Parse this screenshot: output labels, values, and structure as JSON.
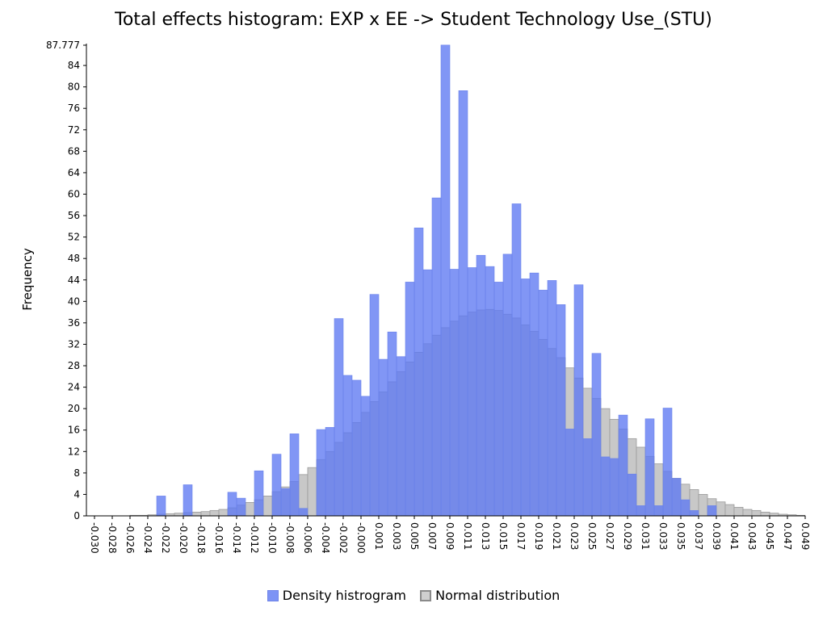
{
  "chart_data": {
    "type": "bar",
    "title": "Total effects histogram: EXP x EE -> Student Technology Use_(STU)",
    "xlabel": "",
    "ylabel": "Frequency",
    "ylim": [
      0,
      87.777
    ],
    "y_ticks": [
      "0",
      "4",
      "8",
      "12",
      "16",
      "20",
      "24",
      "28",
      "32",
      "36",
      "40",
      "44",
      "48",
      "52",
      "56",
      "60",
      "64",
      "68",
      "72",
      "76",
      "80",
      "84",
      "87.777"
    ],
    "x_ticks": [
      "-0.030",
      "-0.028",
      "-0.026",
      "-0.024",
      "-0.022",
      "-0.020",
      "-0.018",
      "-0.016",
      "-0.014",
      "-0.012",
      "-0.010",
      "-0.008",
      "-0.006",
      "-0.004",
      "-0.002",
      "-0.000",
      "0.001",
      "0.003",
      "0.005",
      "0.007",
      "0.009",
      "0.011",
      "0.013",
      "0.015",
      "0.017",
      "0.019",
      "0.021",
      "0.023",
      "0.025",
      "0.027",
      "0.029",
      "0.031",
      "0.033",
      "0.035",
      "0.037",
      "0.039",
      "0.041",
      "0.043",
      "0.045",
      "0.047",
      "0.049"
    ],
    "bin_start": -0.03,
    "bin_width": 0.001,
    "series": [
      {
        "name": "Density histrogram",
        "color": "#7d93f5",
        "values": [
          0,
          0,
          0,
          0,
          0,
          0,
          0,
          3.7,
          0,
          0,
          5.8,
          0,
          0,
          0,
          0,
          4.4,
          3.3,
          0,
          8.4,
          0,
          11.5,
          5.1,
          15.3,
          1.4,
          0,
          16.1,
          16.5,
          36.8,
          26.2,
          25.3,
          22.3,
          41.3,
          29.2,
          34.3,
          29.7,
          43.6,
          53.7,
          45.9,
          59.3,
          87.8,
          46,
          79.3,
          46.3,
          48.6,
          46.5,
          43.6,
          48.8,
          58.2,
          44.2,
          45.3,
          42.1,
          43.9,
          39.4,
          16.2,
          43.1,
          14.4,
          30.3,
          11,
          10.7,
          18.8,
          7.8,
          1.9,
          18.1,
          1.9,
          20.1,
          7,
          3,
          1,
          0,
          1.9,
          0,
          0,
          0,
          0,
          0,
          0,
          0,
          0,
          0,
          0
        ]
      },
      {
        "name": "Normal distribution",
        "color": "#c8c8c8",
        "values": [
          0,
          0,
          0,
          0,
          0.1,
          0.1,
          0.2,
          0.3,
          0.4,
          0.5,
          0.6,
          0.7,
          0.8,
          1,
          1.2,
          1.5,
          2,
          2.5,
          3,
          3.7,
          4.5,
          5.4,
          6.4,
          7.7,
          9,
          10.5,
          12,
          13.7,
          15.5,
          17.4,
          19.3,
          21.3,
          23.1,
          25,
          26.9,
          28.7,
          30.5,
          32.1,
          33.7,
          35.1,
          36.3,
          37.3,
          38,
          38.4,
          38.5,
          38.3,
          37.6,
          36.9,
          35.6,
          34.4,
          32.9,
          31.2,
          29.5,
          27.6,
          25.7,
          23.8,
          21.9,
          20,
          18,
          16.2,
          14.4,
          12.8,
          11.1,
          9.7,
          8.3,
          7,
          5.9,
          4.9,
          4,
          3.2,
          2.6,
          2.1,
          1.6,
          1.2,
          1,
          0.7,
          0.5,
          0.3,
          0.2,
          0.1
        ]
      }
    ],
    "legend_position": "bottom-center",
    "grid": false
  }
}
